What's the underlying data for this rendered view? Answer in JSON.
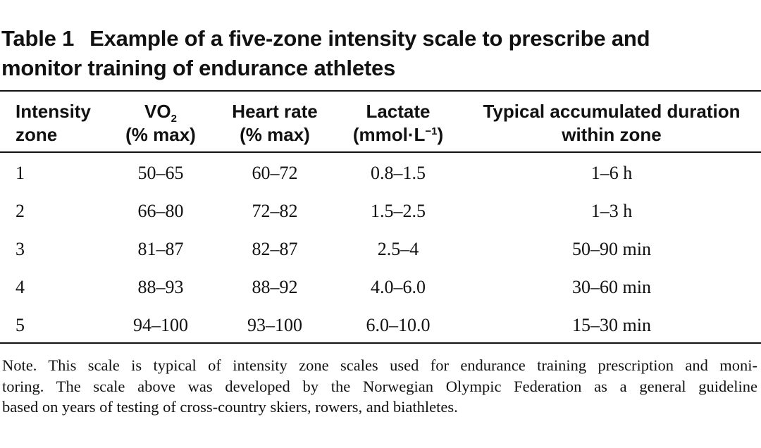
{
  "title": {
    "label": "Table 1",
    "line1": "Example of a five-zone intensity scale to prescribe and",
    "line2": "monitor training of endurance athletes"
  },
  "headers": {
    "zone": [
      "Intensity",
      "zone"
    ],
    "vo2": {
      "base": "VO",
      "sub": "2",
      "unit": "(% max)"
    },
    "hr": [
      "Heart rate",
      "(% max)"
    ],
    "lactate": {
      "line1": "Lactate",
      "unit_pre": "(mmol·L",
      "sup": "−1",
      "unit_post": ")"
    },
    "duration": [
      "Typical accumulated duration",
      "within zone"
    ]
  },
  "rows": [
    {
      "zone": "1",
      "vo2": "50–65",
      "hr": "60–72",
      "lactate": "0.8–1.5",
      "duration": "1–6 h"
    },
    {
      "zone": "2",
      "vo2": "66–80",
      "hr": "72–82",
      "lactate": "1.5–2.5",
      "duration": "1–3 h"
    },
    {
      "zone": "3",
      "vo2": "81–87",
      "hr": "82–87",
      "lactate": "2.5–4",
      "duration": "50–90 min"
    },
    {
      "zone": "4",
      "vo2": "88–93",
      "hr": "88–92",
      "lactate": "4.0–6.0",
      "duration": "30–60 min"
    },
    {
      "zone": "5",
      "vo2": "94–100",
      "hr": "93–100",
      "lactate": "6.0–10.0",
      "duration": "15–30 min"
    }
  ],
  "note": {
    "line1": "Note. This scale is typical of intensity zone scales used for endurance training prescription and moni-",
    "line2": "toring. The scale above was developed by the Norwegian Olympic Federation as a general guideline",
    "line3": "based on years of testing of cross-country skiers, rowers, and biathletes."
  }
}
